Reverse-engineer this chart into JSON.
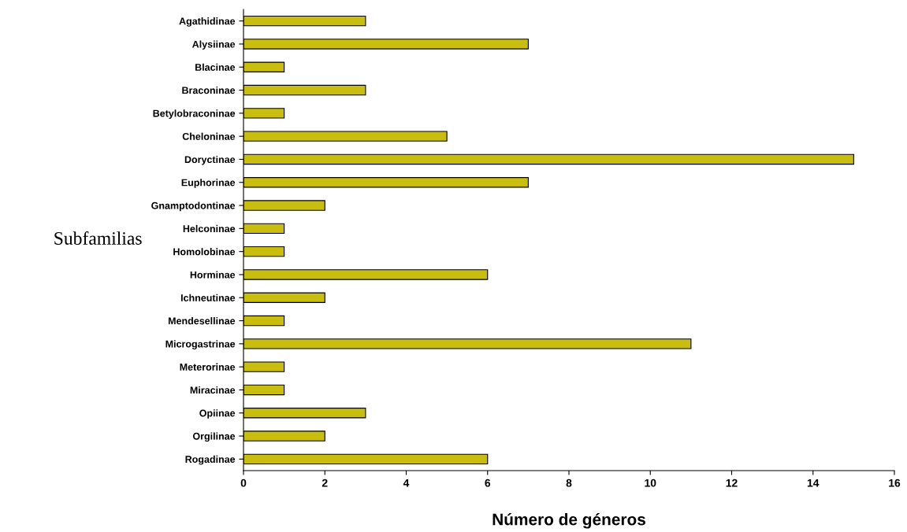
{
  "chart_data": {
    "type": "bar",
    "orientation": "horizontal",
    "xlabel": "Número de géneros",
    "ylabel": "Subfamilias",
    "categories": [
      "Agathidinae",
      "Alysiinae",
      "Blacinae",
      "Braconinae",
      "Betylobraconinae",
      "Cheloninae",
      "Doryctinae",
      "Euphorinae",
      "Gnamptodontinae",
      "Helconinae",
      "Homolobinae",
      "Horminae",
      "Ichneutinae",
      "Mendesellinae",
      "Microgastrinae",
      "Meterorinae",
      "Miracinae",
      "Opiinae",
      "Orgilinae",
      "Rogadinae"
    ],
    "values": [
      3,
      7,
      1,
      3,
      1,
      5,
      15,
      7,
      2,
      1,
      1,
      6,
      2,
      1,
      11,
      1,
      1,
      3,
      2,
      6
    ],
    "color": "#c9bd10",
    "xlim": [
      0,
      16
    ],
    "xticks": [
      0,
      2,
      4,
      6,
      8,
      10,
      12,
      14,
      16
    ],
    "grid": false,
    "legend": false
  }
}
